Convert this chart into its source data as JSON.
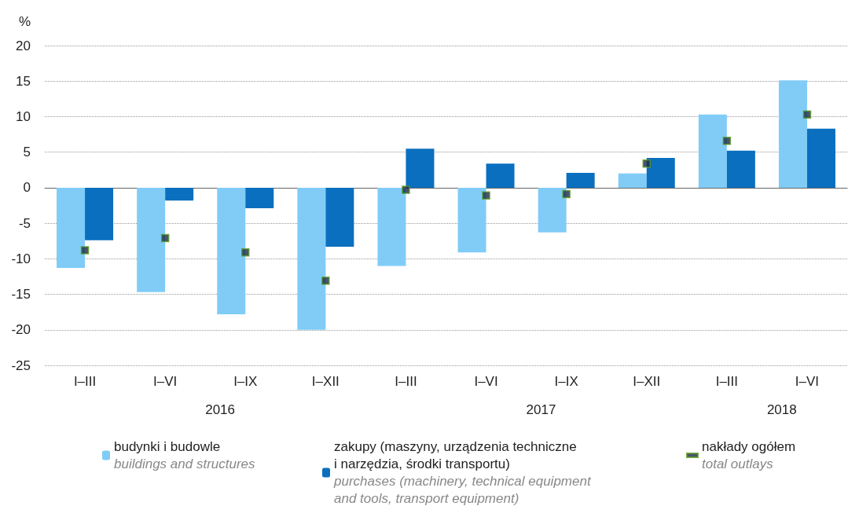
{
  "chart_data": {
    "type": "bar",
    "ylabel": "%",
    "categories": [
      "I–III",
      "I–VI",
      "I–IX",
      "I–XII",
      "I–III",
      "I–VI",
      "I–IX",
      "I–XII",
      "I–III",
      "I–VI"
    ],
    "annotations": [
      "2016",
      "2017",
      "2018"
    ],
    "series": [
      {
        "name": "budynki i budowle\n\nbuildings and structures",
        "color": "#80ccf7",
        "values": [
          -11.3,
          -14.7,
          -17.8,
          -20.0,
          -11.0,
          -9.1,
          -6.3,
          2.0,
          10.3,
          15.1
        ]
      },
      {
        "name": "zakupy (maszyny, urządzenia techniczne\ni narzędzia, środki transportu)\n\npurchases (machinery, technical equipment\nand tools, transport equipment)",
        "color": "#0a6fbf",
        "values": [
          -7.4,
          -1.8,
          -2.9,
          -8.3,
          5.5,
          3.4,
          2.1,
          4.2,
          5.2,
          8.3
        ]
      },
      {
        "name": "nakłady ogółem\n\ntotal outlays",
        "type": "scatter",
        "marker": "square",
        "color": "#1c2b45",
        "values": [
          -8.8,
          -7.1,
          -9.1,
          -13.1,
          -0.3,
          -1.1,
          -0.9,
          3.4,
          6.6,
          10.3
        ]
      }
    ],
    "ylim": [
      -25,
      20
    ],
    "yticks": [
      -25,
      -20,
      -15,
      -10,
      -5,
      0,
      5,
      10,
      15,
      20
    ],
    "grid": "y",
    "legend": "bottom"
  }
}
